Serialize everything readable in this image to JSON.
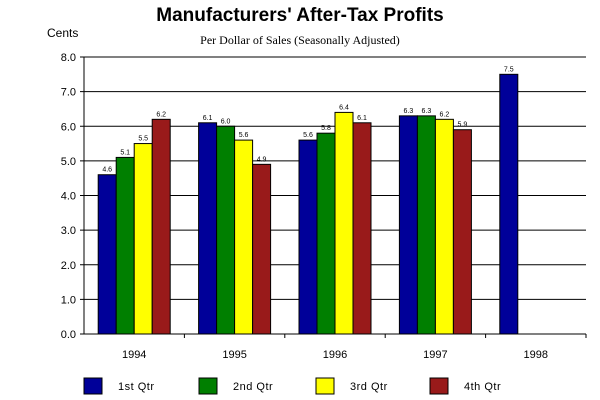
{
  "chart_data": {
    "type": "bar",
    "title": "Manufacturers' After-Tax Profits",
    "subtitle": "Per Dollar of Sales (Seasonally Adjusted)",
    "ylabel": "Cents",
    "xlabel": "",
    "ylim": [
      0,
      8
    ],
    "ytick_step": 1,
    "grid": true,
    "legend_position": "bottom",
    "categories": [
      "1994",
      "1995",
      "1996",
      "1997",
      "1998"
    ],
    "series": [
      {
        "name": "1st Qtr",
        "color": "#000099",
        "values": [
          4.6,
          6.1,
          5.6,
          6.3,
          7.5
        ]
      },
      {
        "name": "2nd Qtr",
        "color": "#007F00",
        "values": [
          5.1,
          6.0,
          5.8,
          6.3,
          null
        ]
      },
      {
        "name": "3rd Qtr",
        "color": "#FFFF00",
        "values": [
          5.5,
          5.6,
          6.4,
          6.2,
          null
        ]
      },
      {
        "name": "4th Qtr",
        "color": "#991A1A",
        "values": [
          6.2,
          4.9,
          6.1,
          5.9,
          null
        ]
      }
    ],
    "data_labels": [
      [
        "4.6",
        "6.1",
        "5.6",
        "6.3",
        "7.5"
      ],
      [
        "5.1",
        "6.0",
        "5.8",
        "6.3",
        null
      ],
      [
        "5.5",
        "5.6",
        "6.4",
        "6.2",
        null
      ],
      [
        "6.2",
        "4.9",
        "6.1",
        "5.9",
        null
      ]
    ]
  }
}
